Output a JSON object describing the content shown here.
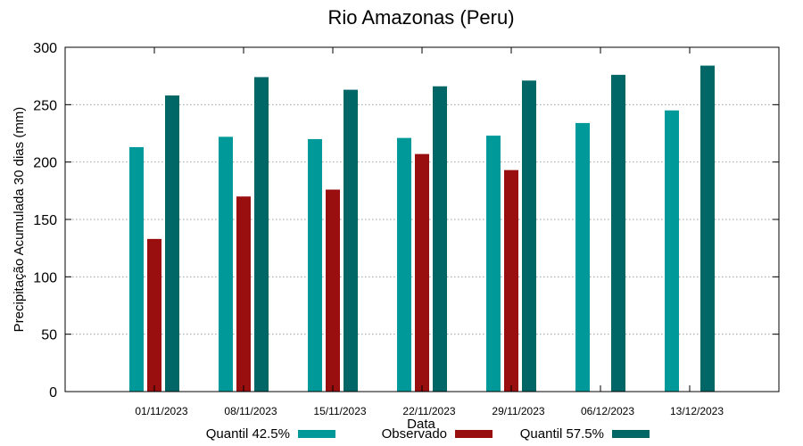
{
  "chart_data": {
    "type": "bar",
    "title": "Rio Amazonas (Peru)",
    "xlabel": "Data",
    "ylabel": "Precipitação Acumulada 30 dias (mm)",
    "ylim": [
      0,
      300
    ],
    "yticks": [
      0,
      50,
      100,
      150,
      200,
      250,
      300
    ],
    "grid": true,
    "legend_position": "bottom",
    "categories": [
      "01/11/2023",
      "08/11/2023",
      "15/11/2023",
      "22/11/2023",
      "29/11/2023",
      "06/12/2023",
      "13/12/2023"
    ],
    "series": [
      {
        "name": "Quantil 42.5%",
        "color": "#009999",
        "values": [
          213,
          222,
          220,
          221,
          223,
          234,
          245
        ]
      },
      {
        "name": "Observado",
        "color": "#990f0f",
        "values": [
          133,
          170,
          176,
          207,
          193,
          null,
          null
        ]
      },
      {
        "name": "Quantil 57.5%",
        "color": "#006666",
        "values": [
          258,
          274,
          263,
          266,
          271,
          276,
          284
        ]
      }
    ]
  }
}
